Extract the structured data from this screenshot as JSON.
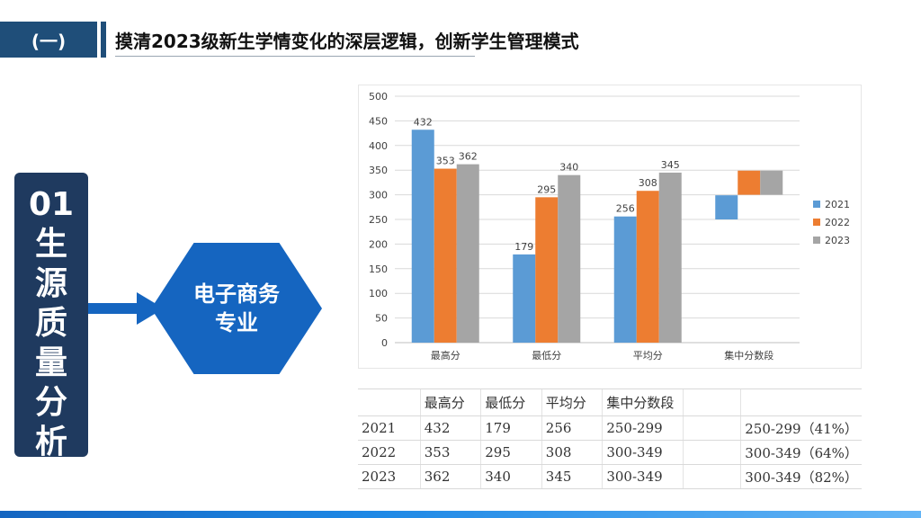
{
  "header": {
    "tag": "(一)",
    "title": "摸清2023级新生学情变化的深层逻辑，创新学生管理模式"
  },
  "side_panel": {
    "chars": [
      "01",
      "生",
      "源",
      "质",
      "量",
      "分",
      "析"
    ]
  },
  "major": {
    "line1": "电子商务",
    "line2": "专业"
  },
  "colors": {
    "navy": "#1f3a5f",
    "accent": "#1565c0",
    "s2021": "#5b9bd5",
    "s2022": "#ed7d31",
    "s2023": "#a5a5a5"
  },
  "chart_data": {
    "type": "bar",
    "categories": [
      "最高分",
      "最低分",
      "平均分",
      "集中分数段"
    ],
    "series": [
      {
        "name": "2021",
        "values": [
          432,
          179,
          256,
          null
        ],
        "range": [
          250,
          299
        ]
      },
      {
        "name": "2022",
        "values": [
          353,
          295,
          308,
          null
        ],
        "range": [
          300,
          349
        ]
      },
      {
        "name": "2023",
        "values": [
          362,
          340,
          345,
          null
        ],
        "range": [
          300,
          349
        ]
      }
    ],
    "ylim": [
      0,
      500
    ],
    "yticks": [
      "0",
      "50",
      "100",
      "150",
      "200",
      "250",
      "300",
      "350",
      "400",
      "450",
      "500"
    ],
    "grid": true,
    "legend": "right",
    "data_labels": true
  },
  "table": {
    "header": [
      "",
      "最高分",
      "最低分",
      "平均分",
      "集中分数段",
      "",
      ""
    ],
    "rows": [
      [
        "2021",
        "432",
        "179",
        "256",
        "250-299",
        "",
        "250-299（41%）"
      ],
      [
        "2022",
        "353",
        "295",
        "308",
        "300-349",
        "",
        "300-349（64%）"
      ],
      [
        "2023",
        "362",
        "340",
        "345",
        "300-349",
        "",
        "300-349（82%）"
      ]
    ]
  }
}
